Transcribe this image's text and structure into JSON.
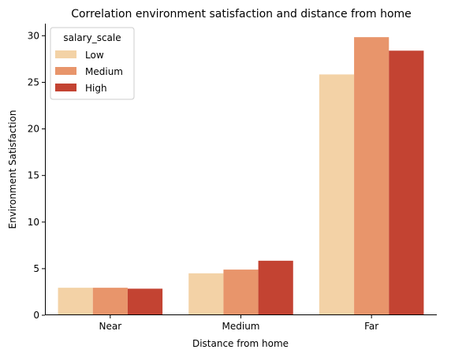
{
  "chart_data": {
    "type": "bar",
    "title": "Correlation environment satisfaction and distance from home",
    "xlabel": "Distance from home",
    "ylabel": "Environment Satisfaction",
    "categories": [
      "Near",
      "Medium",
      "Far"
    ],
    "ylim": [
      0,
      31.3
    ],
    "yticks": [
      0,
      5,
      10,
      15,
      20,
      25,
      30
    ],
    "legend": {
      "title": "salary_scale",
      "placement": "top-left"
    },
    "series": [
      {
        "name": "Low",
        "color": "#f3d2a6",
        "values": [
          2.95,
          4.5,
          25.85
        ]
      },
      {
        "name": "Medium",
        "color": "#e8956b",
        "values": [
          2.95,
          4.9,
          29.85
        ]
      },
      {
        "name": "High",
        "color": "#c34332",
        "values": [
          2.85,
          5.85,
          28.4
        ]
      }
    ],
    "grid": false
  }
}
